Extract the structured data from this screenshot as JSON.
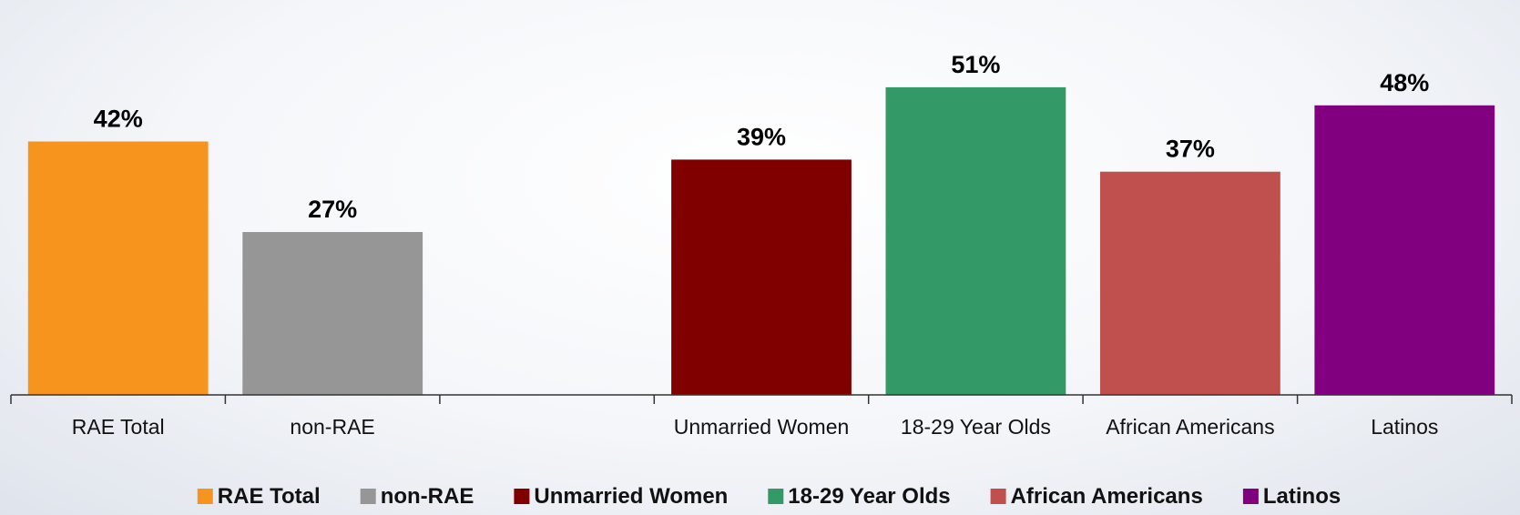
{
  "chart_data": {
    "type": "bar",
    "categories": [
      "RAE Total",
      "non-RAE",
      "",
      "Unmarried Women",
      "18-29 Year Olds",
      "African Americans",
      "Latinos"
    ],
    "values": [
      42,
      27,
      null,
      39,
      51,
      37,
      48
    ],
    "value_labels": [
      "42%",
      "27%",
      "",
      "39%",
      "51%",
      "37%",
      "48%"
    ],
    "unit": "%",
    "ylim": [
      0,
      55
    ],
    "grid": false,
    "legend_position": "bottom",
    "colors": [
      "#F7941D",
      "#969696",
      "",
      "#800000",
      "#339966",
      "#C0504D",
      "#800080"
    ],
    "legend": [
      {
        "name": "RAE Total",
        "color": "#F7941D"
      },
      {
        "name": "non-RAE",
        "color": "#969696"
      },
      {
        "name": "Unmarried Women",
        "color": "#800000"
      },
      {
        "name": "18-29 Year Olds",
        "color": "#339966"
      },
      {
        "name": "African Americans",
        "color": "#C0504D"
      },
      {
        "name": "Latinos",
        "color": "#800080"
      }
    ]
  }
}
